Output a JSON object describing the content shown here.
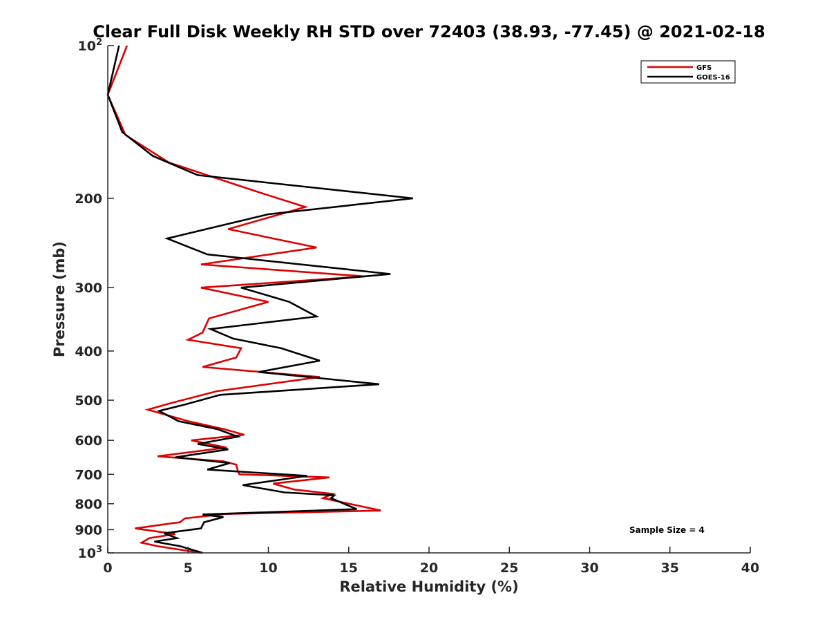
{
  "chart_data": {
    "type": "line",
    "title": "Clear Full Disk Weekly RH STD over 72403 (38.93, -77.45) @ 2021-02-18",
    "xlabel": "Relative Humidity (%)",
    "ylabel": "Pressure (mb)",
    "xlim": [
      0,
      40
    ],
    "ylim": [
      100,
      1000
    ],
    "y_scale": "log",
    "y_reversed": true,
    "grid": false,
    "legend_position": "top-right",
    "x_ticks": [
      "0",
      "5",
      "10",
      "15",
      "20",
      "25",
      "30",
      "35",
      "40"
    ],
    "y_ticks": [
      {
        "value": 100,
        "base": "10",
        "exp": "2"
      },
      {
        "value": 200,
        "label": "200"
      },
      {
        "value": 300,
        "label": "300"
      },
      {
        "value": 400,
        "label": "400"
      },
      {
        "value": 500,
        "label": "500"
      },
      {
        "value": 600,
        "label": "600"
      },
      {
        "value": 700,
        "label": "700"
      },
      {
        "value": 800,
        "label": "800"
      },
      {
        "value": 900,
        "label": "900"
      },
      {
        "value": 1000,
        "base": "10",
        "exp": "3"
      }
    ],
    "annotation": "Sample Size = 4",
    "series": [
      {
        "name": "GFS",
        "color": "#dd0000",
        "points": [
          [
            1.2,
            100
          ],
          [
            0.0,
            125
          ],
          [
            1.1,
            150
          ],
          [
            3.8,
            170
          ],
          [
            9.5,
            195
          ],
          [
            12.3,
            208
          ],
          [
            7.5,
            230
          ],
          [
            13.0,
            250
          ],
          [
            5.8,
            270
          ],
          [
            16.0,
            285
          ],
          [
            5.8,
            300
          ],
          [
            10.0,
            320
          ],
          [
            6.3,
            345
          ],
          [
            5.9,
            368
          ],
          [
            5.0,
            380
          ],
          [
            8.3,
            395
          ],
          [
            8.0,
            412
          ],
          [
            5.9,
            430
          ],
          [
            13.2,
            450
          ],
          [
            6.8,
            480
          ],
          [
            3.8,
            508
          ],
          [
            2.5,
            522
          ],
          [
            5.0,
            550
          ],
          [
            7.2,
            570
          ],
          [
            8.5,
            585
          ],
          [
            5.2,
            600
          ],
          [
            7.4,
            620
          ],
          [
            3.1,
            645
          ],
          [
            7.2,
            660
          ],
          [
            8.0,
            670
          ],
          [
            8.1,
            690
          ],
          [
            8.2,
            700
          ],
          [
            13.8,
            710
          ],
          [
            10.3,
            730
          ],
          [
            11.6,
            750
          ],
          [
            14.0,
            765
          ],
          [
            13.4,
            780
          ],
          [
            17.0,
            825
          ],
          [
            7.3,
            838
          ],
          [
            4.8,
            855
          ],
          [
            4.5,
            870
          ],
          [
            1.7,
            895
          ],
          [
            4.2,
            918
          ],
          [
            2.6,
            935
          ],
          [
            2.1,
            955
          ],
          [
            3.1,
            970
          ],
          [
            5.8,
            1000
          ]
        ]
      },
      {
        "name": "GOES-16",
        "color": "#000000",
        "points": [
          [
            0.7,
            100
          ],
          [
            0.0,
            125
          ],
          [
            0.9,
            148
          ],
          [
            2.8,
            165
          ],
          [
            5.6,
            180
          ],
          [
            19.0,
            200
          ],
          [
            10.0,
            215
          ],
          [
            3.7,
            240
          ],
          [
            6.2,
            258
          ],
          [
            17.6,
            282
          ],
          [
            8.3,
            300
          ],
          [
            11.3,
            320
          ],
          [
            13.0,
            342
          ],
          [
            6.4,
            362
          ],
          [
            7.8,
            378
          ],
          [
            10.8,
            395
          ],
          [
            13.2,
            418
          ],
          [
            9.4,
            440
          ],
          [
            16.9,
            465
          ],
          [
            7.0,
            488
          ],
          [
            4.8,
            510
          ],
          [
            3.2,
            525
          ],
          [
            4.4,
            550
          ],
          [
            6.8,
            570
          ],
          [
            8.1,
            590
          ],
          [
            5.6,
            610
          ],
          [
            7.5,
            625
          ],
          [
            4.2,
            648
          ],
          [
            7.6,
            665
          ],
          [
            6.2,
            685
          ],
          [
            12.4,
            705
          ],
          [
            8.4,
            735
          ],
          [
            11.0,
            760
          ],
          [
            14.1,
            770
          ],
          [
            13.9,
            780
          ],
          [
            15.5,
            820
          ],
          [
            5.9,
            840
          ],
          [
            7.2,
            850
          ],
          [
            6.0,
            870
          ],
          [
            5.8,
            895
          ],
          [
            3.5,
            915
          ],
          [
            4.3,
            935
          ],
          [
            2.9,
            950
          ],
          [
            4.5,
            970
          ],
          [
            5.9,
            1000
          ]
        ]
      }
    ]
  }
}
